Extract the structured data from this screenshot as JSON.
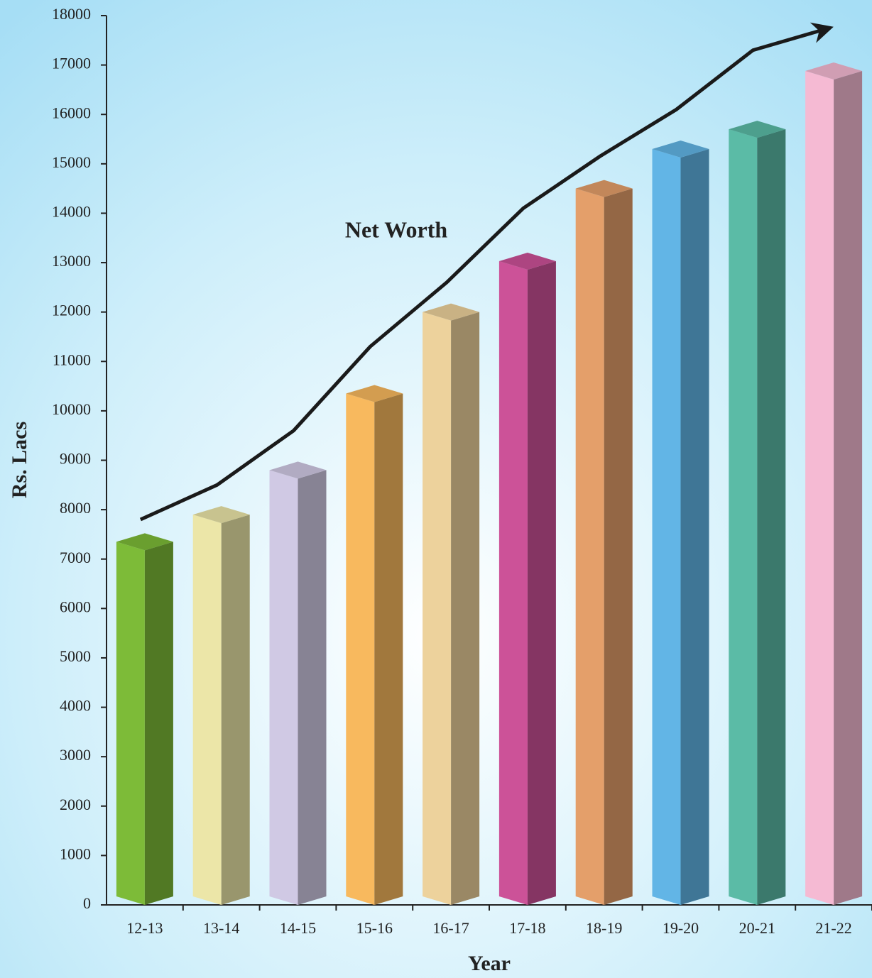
{
  "chart_data": {
    "type": "bar",
    "y_label": "Rs. Lacs",
    "x_label": "Year",
    "annotation": "Net Worth",
    "categories": [
      "12-13",
      "13-14",
      "14-15",
      "15-16",
      "16-17",
      "17-18",
      "18-19",
      "19-20",
      "20-21",
      "21-22"
    ],
    "values": [
      7350,
      7900,
      8800,
      10350,
      12000,
      13030,
      14500,
      15300,
      15700,
      16880
    ],
    "colors": [
      "#7dbb38",
      "#ece6a8",
      "#d0c9e4",
      "#f8b95e",
      "#edd29c",
      "#cc5298",
      "#e49f6a",
      "#62b5e6",
      "#5bbba6",
      "#f5bad3"
    ],
    "line": {
      "name": "Net Worth",
      "color": "#1a1a1a",
      "values": [
        7800,
        8500,
        9600,
        11300,
        12600,
        14100,
        15150,
        16100,
        17300,
        17750
      ]
    },
    "ylim": [
      0,
      18000
    ],
    "yticks": [
      0,
      1000,
      2000,
      3000,
      4000,
      5000,
      6000,
      7000,
      8000,
      9000,
      10000,
      11000,
      12000,
      13000,
      14000,
      15000,
      16000,
      17000,
      18000
    ]
  }
}
